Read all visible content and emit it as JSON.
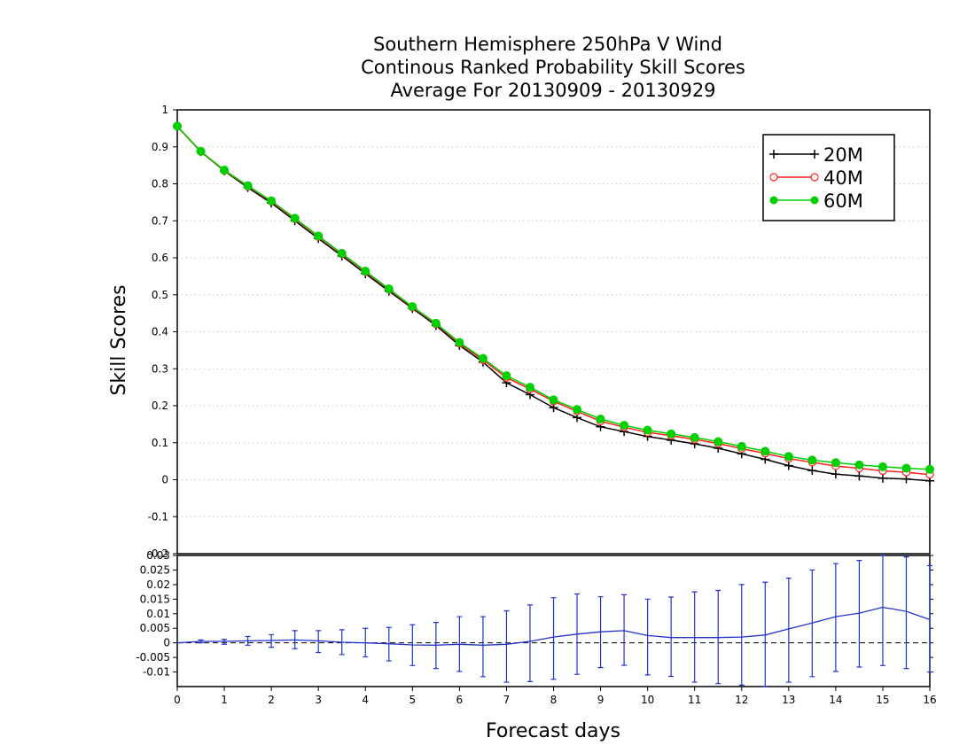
{
  "chart_data": [
    {
      "type": "line",
      "title": [
        "Southern Hemisphere 250hPa V Wind",
        "Continous Ranked Probability Skill Scores",
        "Average For 20130909 - 20130929"
      ],
      "xlabel": "Forecast days",
      "ylabel": "Skill Scores",
      "xlim": [
        0,
        16
      ],
      "ylim": [
        -0.2,
        1
      ],
      "yticks": [
        "1",
        "0.9",
        "0.8",
        "0.7",
        "0.6",
        "0.5",
        "0.4",
        "0.3",
        "0.2",
        "0.1",
        "0",
        "-0.1",
        "-0.2"
      ],
      "xticks": [
        "0",
        "1",
        "2",
        "3",
        "4",
        "5",
        "6",
        "7",
        "8",
        "9",
        "10",
        "11",
        "12",
        "13",
        "14",
        "15",
        "16"
      ],
      "grid": true,
      "legend_position": "top-right",
      "x": [
        0,
        0.5,
        1,
        1.5,
        2,
        2.5,
        3,
        3.5,
        4,
        4.5,
        5,
        5.5,
        6,
        6.5,
        7,
        7.5,
        8,
        8.5,
        9,
        9.5,
        10,
        10.5,
        11,
        11.5,
        12,
        12.5,
        13,
        13.5,
        14,
        14.5,
        15,
        15.5,
        16
      ],
      "series": [
        {
          "name": "20M",
          "color": "#000000",
          "marker": "plus",
          "values": [
            0.955,
            0.887,
            0.835,
            0.79,
            0.748,
            0.7,
            0.652,
            0.605,
            0.557,
            0.51,
            0.463,
            0.417,
            0.363,
            0.318,
            0.262,
            0.23,
            0.195,
            0.168,
            0.143,
            0.13,
            0.117,
            0.107,
            0.097,
            0.085,
            0.07,
            0.055,
            0.038,
            0.025,
            0.015,
            0.01,
            0.004,
            0.002,
            -0.003
          ]
        },
        {
          "name": "40M",
          "color": "#ff2020",
          "marker": "open-circle",
          "values": [
            0.955,
            0.887,
            0.836,
            0.793,
            0.752,
            0.705,
            0.657,
            0.61,
            0.562,
            0.514,
            0.466,
            0.421,
            0.368,
            0.324,
            0.276,
            0.245,
            0.212,
            0.185,
            0.158,
            0.142,
            0.128,
            0.119,
            0.109,
            0.098,
            0.084,
            0.071,
            0.057,
            0.047,
            0.037,
            0.031,
            0.024,
            0.02,
            0.014
          ]
        },
        {
          "name": "60M",
          "color": "#00d000",
          "marker": "filled-circle",
          "values": [
            0.956,
            0.888,
            0.837,
            0.795,
            0.754,
            0.707,
            0.659,
            0.612,
            0.564,
            0.516,
            0.468,
            0.423,
            0.371,
            0.328,
            0.281,
            0.25,
            0.216,
            0.19,
            0.164,
            0.147,
            0.134,
            0.124,
            0.114,
            0.103,
            0.09,
            0.077,
            0.063,
            0.053,
            0.046,
            0.04,
            0.035,
            0.031,
            0.028
          ]
        }
      ]
    },
    {
      "type": "line",
      "xlim": [
        0,
        16
      ],
      "ylim": [
        -0.015,
        0.03
      ],
      "yticks": [
        "0.03",
        "0.025",
        "0.02",
        "0.015",
        "0.01",
        "0.005",
        "0",
        "-0.005",
        "-0.01"
      ],
      "zero_line": "dashed",
      "series": [
        {
          "color": "#2233cc",
          "error_bars": true,
          "values": [
            0.0,
            0.0005,
            0.0005,
            0.0007,
            0.0008,
            0.001,
            0.0007,
            0.0002,
            0.0,
            -0.0003,
            -0.0007,
            -0.0008,
            -0.0005,
            -0.0008,
            -0.0005,
            0.0005,
            0.002,
            0.003,
            0.0038,
            0.0042,
            0.0025,
            0.0018,
            0.0018,
            0.0018,
            0.002,
            0.0027,
            0.0048,
            0.0068,
            0.009,
            0.0102,
            0.0122,
            0.0108,
            0.008
          ],
          "error_lower": [
            0.0,
            0.0,
            -0.0005,
            -0.0008,
            -0.0015,
            -0.002,
            -0.0033,
            -0.004,
            -0.0048,
            -0.0062,
            -0.0078,
            -0.0088,
            -0.0098,
            -0.0116,
            -0.0135,
            -0.0133,
            -0.0125,
            -0.0108,
            -0.0085,
            -0.0077,
            -0.011,
            -0.0115,
            -0.0135,
            -0.014,
            -0.0145,
            -0.0155,
            -0.0135,
            -0.0116,
            -0.0098,
            -0.0083,
            -0.0078,
            -0.0088,
            -0.01
          ],
          "error_upper": [
            0.0,
            0.001,
            0.0012,
            0.0022,
            0.0028,
            0.0042,
            0.0042,
            0.0045,
            0.005,
            0.0053,
            0.0062,
            0.007,
            0.009,
            0.009,
            0.011,
            0.013,
            0.0155,
            0.0168,
            0.0158,
            0.0165,
            0.015,
            0.0157,
            0.0175,
            0.018,
            0.02,
            0.0208,
            0.0222,
            0.025,
            0.0272,
            0.0283,
            0.0312,
            0.0295,
            0.0265
          ]
        }
      ]
    }
  ]
}
